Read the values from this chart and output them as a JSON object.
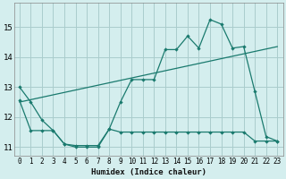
{
  "xlabel": "Humidex (Indice chaleur)",
  "bg_color": "#d4eeee",
  "grid_color": "#aacccc",
  "line_color": "#1a7a6e",
  "xlim": [
    -0.5,
    23.5
  ],
  "ylim": [
    10.7,
    15.8
  ],
  "xticks": [
    0,
    1,
    2,
    3,
    4,
    5,
    6,
    7,
    8,
    9,
    10,
    11,
    12,
    13,
    14,
    15,
    16,
    17,
    18,
    19,
    20,
    21,
    22,
    23
  ],
  "yticks": [
    11,
    12,
    13,
    14,
    15
  ],
  "line1_x": [
    0,
    1,
    2,
    3,
    4,
    5,
    6,
    7,
    8,
    9,
    10,
    11,
    12,
    13,
    14,
    15,
    16,
    17,
    18,
    19,
    20,
    21,
    22,
    23
  ],
  "line1_y": [
    13.0,
    12.5,
    11.9,
    11.55,
    11.1,
    11.05,
    11.05,
    11.05,
    11.6,
    12.5,
    13.25,
    13.25,
    13.25,
    14.25,
    14.25,
    14.7,
    14.3,
    15.25,
    15.1,
    14.3,
    14.35,
    12.85,
    11.35,
    11.2
  ],
  "line2_x": [
    0,
    1,
    2,
    3,
    4,
    5,
    6,
    7,
    8,
    9,
    10,
    11,
    12,
    13,
    14,
    15,
    16,
    17,
    18,
    19,
    20,
    21,
    22,
    23
  ],
  "line2_y": [
    12.55,
    11.55,
    11.55,
    11.55,
    11.1,
    11.0,
    11.0,
    11.0,
    11.6,
    11.5,
    11.5,
    11.5,
    11.5,
    11.5,
    11.5,
    11.5,
    11.5,
    11.5,
    11.5,
    11.5,
    11.5,
    11.2,
    11.2,
    11.2
  ],
  "line3_x": [
    0,
    23
  ],
  "line3_y": [
    12.5,
    14.35
  ]
}
